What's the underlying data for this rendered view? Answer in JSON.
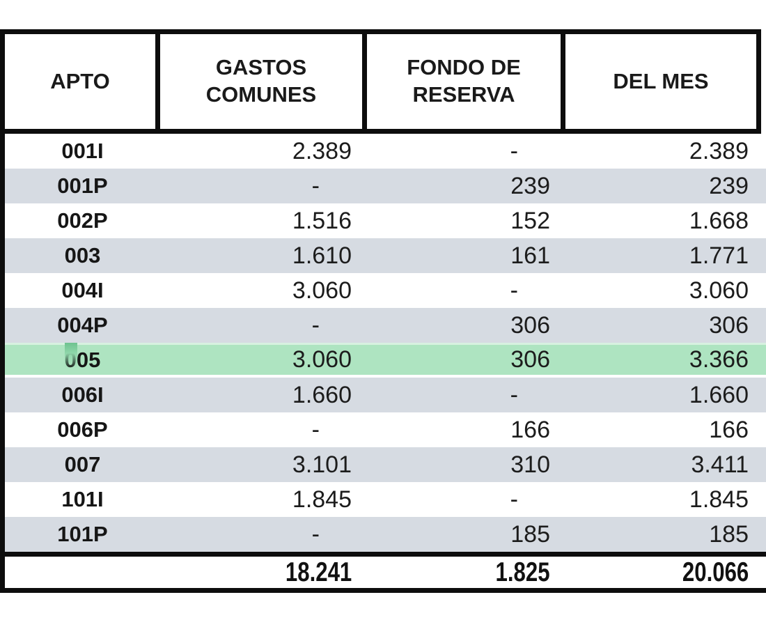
{
  "table": {
    "columns": [
      {
        "label": "APTO"
      },
      {
        "label": "GASTOS COMUNES"
      },
      {
        "label": "FONDO DE RESERVA"
      },
      {
        "label": "DEL MES"
      }
    ],
    "rows": [
      {
        "apto": "001I",
        "gastos_comunes": "2.389",
        "fondo_reserva": "-",
        "del_mes": "2.389",
        "highlighted": false
      },
      {
        "apto": "001P",
        "gastos_comunes": "-",
        "fondo_reserva": "239",
        "del_mes": "239",
        "highlighted": false
      },
      {
        "apto": "002P",
        "gastos_comunes": "1.516",
        "fondo_reserva": "152",
        "del_mes": "1.668",
        "highlighted": false
      },
      {
        "apto": "003",
        "gastos_comunes": "1.610",
        "fondo_reserva": "161",
        "del_mes": "1.771",
        "highlighted": false
      },
      {
        "apto": "004I",
        "gastos_comunes": "3.060",
        "fondo_reserva": "-",
        "del_mes": "3.060",
        "highlighted": false
      },
      {
        "apto": "004P",
        "gastos_comunes": "-",
        "fondo_reserva": "306",
        "del_mes": "306",
        "highlighted": false
      },
      {
        "apto": "005",
        "gastos_comunes": "3.060",
        "fondo_reserva": "306",
        "del_mes": "3.366",
        "highlighted": true
      },
      {
        "apto": "006I",
        "gastos_comunes": "1.660",
        "fondo_reserva": "-",
        "del_mes": "1.660",
        "highlighted": false
      },
      {
        "apto": "006P",
        "gastos_comunes": "-",
        "fondo_reserva": "166",
        "del_mes": "166",
        "highlighted": false
      },
      {
        "apto": "007",
        "gastos_comunes": "3.101",
        "fondo_reserva": "310",
        "del_mes": "3.411",
        "highlighted": false
      },
      {
        "apto": "101I",
        "gastos_comunes": "1.845",
        "fondo_reserva": "-",
        "del_mes": "1.845",
        "highlighted": false
      },
      {
        "apto": "101P",
        "gastos_comunes": "-",
        "fondo_reserva": "185",
        "del_mes": "185",
        "highlighted": false
      }
    ],
    "totals": {
      "gastos_comunes": "18.241",
      "fondo_reserva": "1.825",
      "del_mes": "20.066"
    }
  },
  "colors": {
    "border_ink": "#0d0d0d",
    "stripe_row": "#d6dbe2",
    "highlight_row": "#aee4c1",
    "highlight_top_edge": "#d7f1e0",
    "selection_streak": "#6ec28f",
    "text": "#1c1c1c"
  }
}
